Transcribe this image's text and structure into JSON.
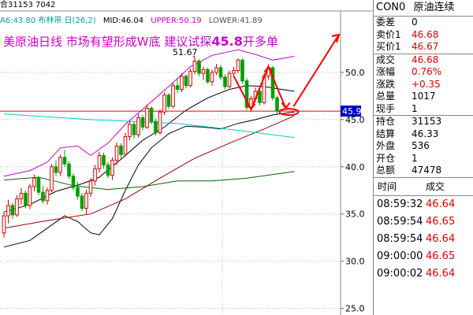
{
  "chart_header": {
    "top_text": "合31153 7042",
    "indicator_name": "A6:43.80 布林带 日(26,2)",
    "mid": "MID:46.04",
    "upper": "UPPER:50.19",
    "lower": "LOWER:41.89"
  },
  "headline": {
    "text": "美原油日线 市场有望形成W底 建议试探",
    "number": "45.8",
    "suffix": "开多单"
  },
  "annotations": {
    "high_label": "51.67",
    "price_tag": "45.9"
  },
  "colors": {
    "up": "#e00000",
    "down": "#00a000",
    "upper_band": "#cc00cc",
    "mid_band": "#000000",
    "lower_band": "#000000",
    "ma_red": "#990000",
    "ma_green": "#006600",
    "cyan": "#00cccc",
    "arrow": "#ff0000",
    "price_tag_bg": "#0000cc"
  },
  "chart_data": {
    "type": "candlestick",
    "y_axis": {
      "ticks": [
        25.0,
        30.0,
        35.0,
        40.0,
        45.0,
        50.0
      ],
      "range": [
        24.3,
        56.5
      ],
      "position": "right"
    },
    "indicator": "布林带 日(26,2)",
    "values": {
      "MID": 46.04,
      "UPPER": 50.19,
      "LOWER": 41.89
    },
    "high_marker": 51.67,
    "current_price_tag": 45.9,
    "candles": [
      [
        33.0,
        35.2,
        32.5,
        34.8
      ],
      [
        34.8,
        36.5,
        34.0,
        35.9
      ],
      [
        35.9,
        36.2,
        34.5,
        34.9
      ],
      [
        34.9,
        37.0,
        34.7,
        36.6
      ],
      [
        36.6,
        37.8,
        36.0,
        37.2
      ],
      [
        37.2,
        37.5,
        35.6,
        35.9
      ],
      [
        35.9,
        38.2,
        35.5,
        37.9
      ],
      [
        37.9,
        39.2,
        37.4,
        38.8
      ],
      [
        38.8,
        39.0,
        37.0,
        37.3
      ],
      [
        37.3,
        38.0,
        36.1,
        36.4
      ],
      [
        36.4,
        37.8,
        36.0,
        37.5
      ],
      [
        37.5,
        40.3,
        37.3,
        40.0
      ],
      [
        40.0,
        40.7,
        39.0,
        39.4
      ],
      [
        39.4,
        41.3,
        39.0,
        41.0
      ],
      [
        41.0,
        41.8,
        40.0,
        40.3
      ],
      [
        40.3,
        40.6,
        38.7,
        39.0
      ],
      [
        39.0,
        39.3,
        37.5,
        37.8
      ],
      [
        37.8,
        38.4,
        36.5,
        36.9
      ],
      [
        36.9,
        37.2,
        35.3,
        35.6
      ],
      [
        35.6,
        37.6,
        35.0,
        37.2
      ],
      [
        37.2,
        38.8,
        36.8,
        38.5
      ],
      [
        38.5,
        40.2,
        38.0,
        39.8
      ],
      [
        39.8,
        41.6,
        39.4,
        41.2
      ],
      [
        41.2,
        41.5,
        39.8,
        40.2
      ],
      [
        40.2,
        40.5,
        38.8,
        39.1
      ],
      [
        39.1,
        41.0,
        38.6,
        40.7
      ],
      [
        40.7,
        42.6,
        40.2,
        42.2
      ],
      [
        42.2,
        42.5,
        40.9,
        41.3
      ],
      [
        41.3,
        43.6,
        41.1,
        43.2
      ],
      [
        43.2,
        44.9,
        42.8,
        44.5
      ],
      [
        44.5,
        44.8,
        43.0,
        43.4
      ],
      [
        43.4,
        45.6,
        43.1,
        45.2
      ],
      [
        45.2,
        45.5,
        43.9,
        44.2
      ],
      [
        44.2,
        46.6,
        44.0,
        46.2
      ],
      [
        46.2,
        46.4,
        44.5,
        44.8
      ],
      [
        44.8,
        45.1,
        43.3,
        43.6
      ],
      [
        43.6,
        46.1,
        43.4,
        45.8
      ],
      [
        45.8,
        47.9,
        45.5,
        47.6
      ],
      [
        47.6,
        47.8,
        46.1,
        46.4
      ],
      [
        46.4,
        48.9,
        46.2,
        48.6
      ],
      [
        48.6,
        49.4,
        47.8,
        48.2
      ],
      [
        48.2,
        49.9,
        47.9,
        49.6
      ],
      [
        49.6,
        49.8,
        48.3,
        48.6
      ],
      [
        48.6,
        50.4,
        48.4,
        50.1
      ],
      [
        50.1,
        51.67,
        49.8,
        51.2
      ],
      [
        51.2,
        51.4,
        49.6,
        49.9
      ],
      [
        49.9,
        50.6,
        49.2,
        50.3
      ],
      [
        50.3,
        50.5,
        48.8,
        49.0
      ],
      [
        49.0,
        50.3,
        48.6,
        50.0
      ],
      [
        50.0,
        50.9,
        49.7,
        50.5
      ],
      [
        50.5,
        50.8,
        49.2,
        49.5
      ],
      [
        49.5,
        49.8,
        48.2,
        48.5
      ],
      [
        48.5,
        50.2,
        48.3,
        49.9
      ],
      [
        49.9,
        50.6,
        49.5,
        50.2
      ],
      [
        50.2,
        51.5,
        49.9,
        51.3
      ],
      [
        51.3,
        51.5,
        48.8,
        49.1
      ],
      [
        49.1,
        49.4,
        46.0,
        46.3
      ],
      [
        46.3,
        47.5,
        45.8,
        47.2
      ],
      [
        47.2,
        48.4,
        46.8,
        48.0
      ],
      [
        48.0,
        48.3,
        46.5,
        46.8
      ],
      [
        46.8,
        49.9,
        46.6,
        49.6
      ],
      [
        49.6,
        50.9,
        49.2,
        50.5
      ],
      [
        50.5,
        50.7,
        47.0,
        47.3
      ],
      [
        47.3,
        47.5,
        45.6,
        45.9
      ]
    ],
    "lines": [
      {
        "name": "UPPER",
        "color": "#cc00cc",
        "points": [
          [
            0,
            39.0
          ],
          [
            6,
            39.6
          ],
          [
            10,
            40.5
          ],
          [
            13,
            42.0
          ],
          [
            17,
            42.2
          ],
          [
            20,
            41.2
          ],
          [
            24,
            42.5
          ],
          [
            28,
            44.5
          ],
          [
            33,
            46.5
          ],
          [
            38,
            48.5
          ],
          [
            43,
            50.6
          ],
          [
            48,
            51.8
          ],
          [
            54,
            52.4
          ],
          [
            58,
            51.9
          ],
          [
            62,
            51.3
          ],
          [
            67,
            51.7
          ]
        ]
      },
      {
        "name": "MID",
        "color": "#000000",
        "points": [
          [
            0,
            35.2
          ],
          [
            6,
            36.0
          ],
          [
            12,
            37.4
          ],
          [
            18,
            38.2
          ],
          [
            22,
            38.9
          ],
          [
            27,
            40.8
          ],
          [
            32,
            42.8
          ],
          [
            37,
            44.2
          ],
          [
            42,
            46.0
          ],
          [
            47,
            47.3
          ],
          [
            52,
            48.2
          ],
          [
            56,
            48.6
          ],
          [
            60,
            48.5
          ],
          [
            64,
            48.2
          ],
          [
            67,
            48.0
          ]
        ]
      },
      {
        "name": "LOWER",
        "color": "#000000",
        "points": [
          [
            0,
            31.5
          ],
          [
            6,
            32.2
          ],
          [
            10,
            33.5
          ],
          [
            14,
            34.8
          ],
          [
            17,
            34.2
          ],
          [
            20,
            33.0
          ],
          [
            22,
            32.8
          ],
          [
            25,
            34.5
          ],
          [
            28,
            37.5
          ],
          [
            31,
            40.2
          ],
          [
            34,
            42.0
          ],
          [
            38,
            43.5
          ],
          [
            42,
            44.3
          ],
          [
            46,
            44.2
          ],
          [
            50,
            44.0
          ],
          [
            54,
            44.6
          ],
          [
            58,
            45.0
          ],
          [
            62,
            45.5
          ],
          [
            67,
            45.8
          ]
        ]
      },
      {
        "name": "MA_RED",
        "color": "#990000",
        "points": [
          [
            0,
            33.5
          ],
          [
            10,
            34.3
          ],
          [
            20,
            35.0
          ],
          [
            28,
            36.6
          ],
          [
            36,
            38.8
          ],
          [
            44,
            40.9
          ],
          [
            52,
            42.5
          ],
          [
            60,
            44.0
          ],
          [
            67,
            45.4
          ]
        ]
      },
      {
        "name": "MA_GREEN",
        "color": "#006600",
        "points": [
          [
            0,
            38.6
          ],
          [
            8,
            38.9
          ],
          [
            16,
            38.0
          ],
          [
            24,
            37.6
          ],
          [
            32,
            37.9
          ],
          [
            40,
            38.5
          ],
          [
            48,
            38.5
          ],
          [
            56,
            38.8
          ],
          [
            67,
            39.5
          ]
        ]
      },
      {
        "name": "CYAN",
        "color": "#00cccc",
        "points": [
          [
            0,
            45.6
          ],
          [
            20,
            45.0
          ],
          [
            40,
            44.6
          ],
          [
            55,
            43.8
          ],
          [
            67,
            43.1
          ]
        ]
      }
    ]
  },
  "quote_panel": {
    "code": "CON0",
    "name": "原油连续",
    "rows": [
      {
        "label": "委差",
        "value": "0",
        "color": "blk"
      },
      {
        "label": "卖价1",
        "value": "46.68",
        "color": "red"
      },
      {
        "label": "买价1",
        "value": "46.67",
        "color": "red"
      },
      {
        "label": "成交",
        "value": "46.68",
        "color": "red",
        "sep": true
      },
      {
        "label": "涨幅",
        "value": "0.76%",
        "color": "red"
      },
      {
        "label": "涨跌",
        "value": "+0.35",
        "color": "red"
      },
      {
        "label": "总量",
        "value": "1017",
        "color": "blk"
      },
      {
        "label": "现手",
        "value": "1",
        "color": "blk"
      },
      {
        "label": "持仓",
        "value": "31153",
        "color": "blk",
        "sep": true
      },
      {
        "label": "结算",
        "value": "46.33",
        "color": "blk"
      },
      {
        "label": "外盘",
        "value": "536",
        "color": "blk"
      },
      {
        "label": "开仓",
        "value": "1",
        "color": "blk"
      },
      {
        "label": "总额",
        "value": "47478",
        "color": "blk"
      }
    ],
    "tick_header": {
      "time": "时间",
      "deal": "成交"
    },
    "ticks": [
      {
        "time": "08:59:32",
        "price": "46.64"
      },
      {
        "time": "08:59:54",
        "price": "46.65"
      },
      {
        "time": "08:59:54",
        "price": "46.64"
      },
      {
        "time": "09:00:00",
        "price": "46.65"
      },
      {
        "time": "09:00:02",
        "price": "46.64"
      }
    ]
  }
}
